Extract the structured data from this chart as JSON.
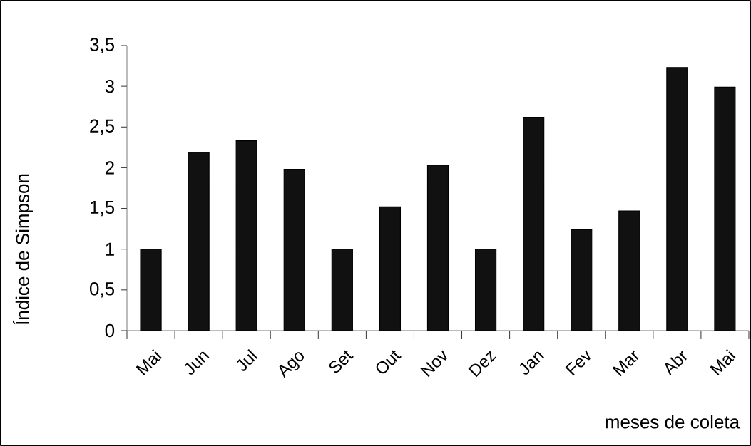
{
  "chart_data": {
    "type": "bar",
    "xlabel": "meses de coleta",
    "ylabel": "Índice de Simpson",
    "categories": [
      "Mai",
      "Jun",
      "Jul",
      "Ago",
      "Set",
      "Out",
      "Nov",
      "Dez",
      "Jan",
      "Fev",
      "Mar",
      "Abr",
      "Mai"
    ],
    "values": [
      1.0,
      2.19,
      2.33,
      1.98,
      1.0,
      1.52,
      2.03,
      1.0,
      2.62,
      1.24,
      1.47,
      3.23,
      2.99
    ],
    "color": "#111111",
    "ylim": [
      0,
      3.5
    ],
    "yticks": [
      0,
      {
        "value": 0.5,
        "label": "0,5"
      },
      1,
      {
        "value": 1.5,
        "label": "1,5"
      },
      2,
      {
        "value": 2.5,
        "label": "2,5"
      },
      3,
      {
        "value": 3.5,
        "label": "3,5"
      }
    ]
  }
}
